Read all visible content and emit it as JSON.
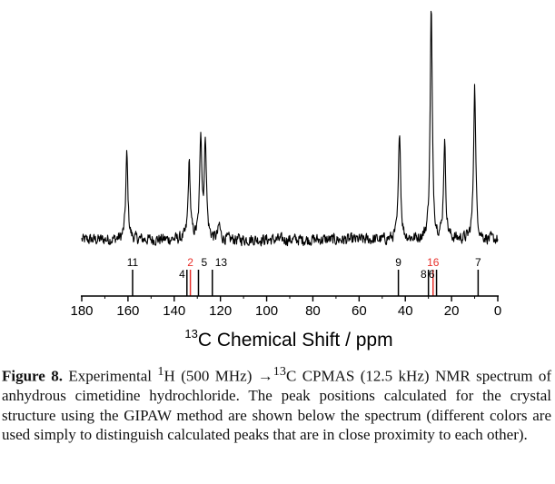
{
  "chart_data": {
    "type": "line",
    "title": "",
    "xlabel_superscript": "13",
    "xlabel_text": "C Chemical Shift / ppm",
    "xlim": [
      180,
      0
    ],
    "x_ticks": [
      "180",
      "160",
      "140",
      "120",
      "100",
      "80",
      "60",
      "40",
      "20",
      "0"
    ],
    "y_axis": "none",
    "spectrum_baseline": 0.05,
    "spectrum_peaks": [
      {
        "ppm": 160.5,
        "height": 0.37
      },
      {
        "ppm": 133.5,
        "height": 0.33
      },
      {
        "ppm": 128.5,
        "height": 0.45
      },
      {
        "ppm": 126.5,
        "height": 0.42
      },
      {
        "ppm": 120.5,
        "height": 0.06
      },
      {
        "ppm": 42.5,
        "height": 0.48
      },
      {
        "ppm": 28.8,
        "height": 1.0
      },
      {
        "ppm": 23.0,
        "height": 0.42
      },
      {
        "ppm": 10.0,
        "height": 0.67
      }
    ],
    "calculated_peaks": [
      {
        "label": "11",
        "ppm": 158.0,
        "color": "#000000",
        "label_level": "top"
      },
      {
        "label": "2",
        "ppm": 133.0,
        "color": "#e8302b",
        "label_level": "top"
      },
      {
        "label": "4",
        "ppm": 134.5,
        "color": "#000000",
        "label_level": "low"
      },
      {
        "label": "5",
        "ppm": 129.5,
        "color": "#000000",
        "label_level": "top"
      },
      {
        "label": "13",
        "ppm": 123.5,
        "color": "#000000",
        "label_level": "top"
      },
      {
        "label": "9",
        "ppm": 43.0,
        "color": "#000000",
        "label_level": "top"
      },
      {
        "label": "8",
        "ppm": 30.0,
        "color": "#000000",
        "label_level": "low"
      },
      {
        "label": "16",
        "ppm": 28.0,
        "color": "#e8302b",
        "label_level": "top"
      },
      {
        "label": "6",
        "ppm": 26.5,
        "color": "#000000",
        "label_level": "low"
      },
      {
        "label": "7",
        "ppm": 8.5,
        "color": "#000000",
        "label_level": "top"
      }
    ]
  },
  "caption": {
    "label": "Figure 8.",
    "part1": " Experimental ",
    "sup1": "1",
    "part2": "H (500 MHz) →",
    "sup2": "13",
    "part3": "C CPMAS (12.5 kHz) NMR spectrum of anhydrous cimetidine hydrochloride. The peak positions calculated for the crystal structure using the GIPAW method are shown below the spectrum (different colors are used simply to distinguish calculated peaks that are in close proximity to each other)."
  }
}
